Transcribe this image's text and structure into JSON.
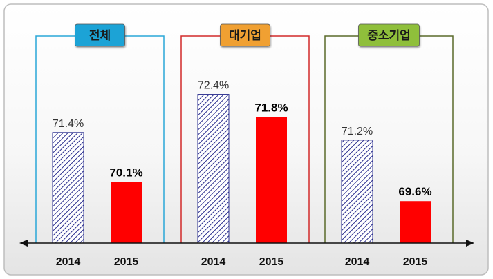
{
  "chart_data": {
    "type": "bar",
    "groups": [
      {
        "label": "전체",
        "color": "#1fa3d6",
        "values": [
          71.4,
          70.1
        ],
        "value_labels": [
          "71.4%",
          "70.1%"
        ]
      },
      {
        "label": "대기업",
        "color": "#f0a030",
        "values": [
          72.4,
          71.8
        ],
        "value_labels": [
          "72.4%",
          "71.8%"
        ]
      },
      {
        "label": "중소기업",
        "color": "#8fbf3a",
        "values": [
          71.2,
          69.6
        ],
        "value_labels": [
          "71.2%",
          "69.6%"
        ]
      }
    ],
    "categories": [
      "2014",
      "2015"
    ],
    "series_colors": {
      "2014": "#2b2f8f",
      "2015": "#ff0000"
    },
    "frame_colors": [
      "#2aa7d8",
      "#d22a2a",
      "#5a6a2a"
    ],
    "ylim": [
      68.5,
      72.7
    ]
  }
}
